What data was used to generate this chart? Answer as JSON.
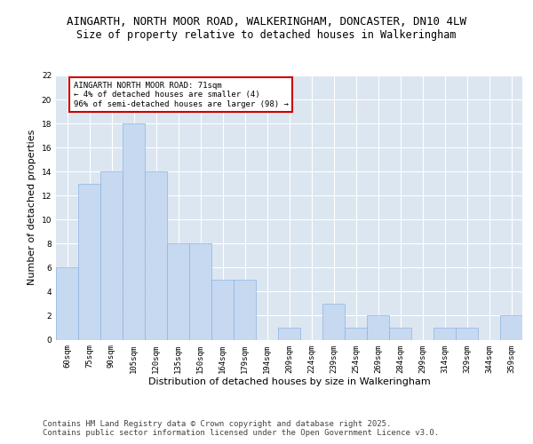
{
  "title_line1": "AINGARTH, NORTH MOOR ROAD, WALKERINGHAM, DONCASTER, DN10 4LW",
  "title_line2": "Size of property relative to detached houses in Walkeringham",
  "xlabel": "Distribution of detached houses by size in Walkeringham",
  "ylabel": "Number of detached properties",
  "categories": [
    "60sqm",
    "75sqm",
    "90sqm",
    "105sqm",
    "120sqm",
    "135sqm",
    "150sqm",
    "164sqm",
    "179sqm",
    "194sqm",
    "209sqm",
    "224sqm",
    "239sqm",
    "254sqm",
    "269sqm",
    "284sqm",
    "299sqm",
    "314sqm",
    "329sqm",
    "344sqm",
    "359sqm"
  ],
  "values": [
    6,
    13,
    14,
    18,
    14,
    8,
    8,
    5,
    5,
    0,
    1,
    0,
    3,
    1,
    2,
    1,
    0,
    1,
    1,
    0,
    2
  ],
  "bar_color": "#c6d9f0",
  "bar_edge_color": "#8db4e2",
  "annotation_text": "AINGARTH NORTH MOOR ROAD: 71sqm\n← 4% of detached houses are smaller (4)\n96% of semi-detached houses are larger (98) →",
  "annotation_box_color": "#ffffff",
  "annotation_box_edge": "#cc0000",
  "ylim": [
    0,
    22
  ],
  "yticks": [
    0,
    2,
    4,
    6,
    8,
    10,
    12,
    14,
    16,
    18,
    20,
    22
  ],
  "background_color": "#dce6f1",
  "grid_color": "#ffffff",
  "footer_text": "Contains HM Land Registry data © Crown copyright and database right 2025.\nContains public sector information licensed under the Open Government Licence v3.0.",
  "title_fontsize": 9,
  "subtitle_fontsize": 8.5,
  "label_fontsize": 8,
  "tick_fontsize": 6.5,
  "annotation_fontsize": 6.5,
  "footer_fontsize": 6.5
}
